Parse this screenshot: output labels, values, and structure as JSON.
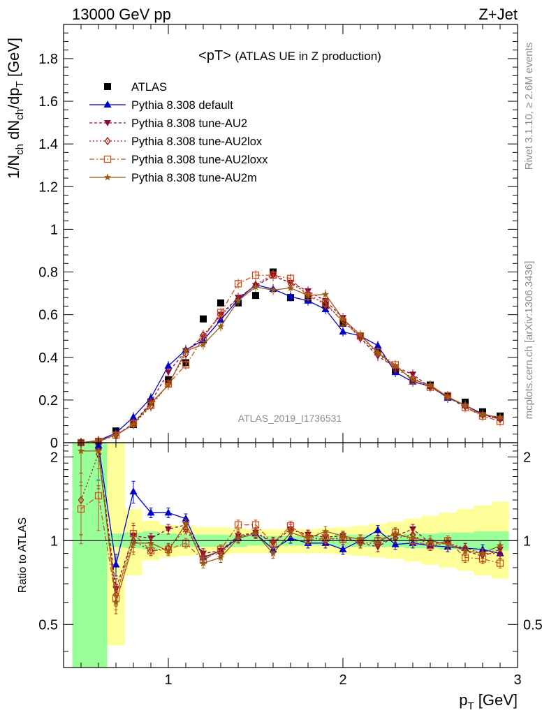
{
  "header": {
    "left": "13000 GeV pp",
    "right": "Z+Jet"
  },
  "side_labels": {
    "rivet": "Rivet 3.1.10, ≥ 2.6M events",
    "mcplots": "mcplots.cern.ch [arXiv:1306.3436]"
  },
  "analysis_id": "ATLAS_2019_I1736531",
  "chart_data": [
    {
      "type": "line",
      "panel": "main",
      "title_main": "<pT>",
      "title_sub": "(ATLAS UE in Z production)",
      "ylabel": "1/N_ch dN_ch/dp_T [GeV]",
      "xlabel": "p_T [GeV]",
      "xlim": [
        0.4,
        3.0
      ],
      "ylim": [
        0,
        1.96
      ],
      "x_ticks": [
        "1",
        "2",
        "3"
      ],
      "y_ticks": [
        "0",
        "0.2",
        "0.4",
        "0.6",
        "0.8",
        "1",
        "1.2",
        "1.4",
        "1.6",
        "1.8"
      ],
      "legend_position": "top-left",
      "x": [
        0.5,
        0.6,
        0.7,
        0.8,
        0.9,
        1.0,
        1.1,
        1.2,
        1.3,
        1.4,
        1.5,
        1.6,
        1.7,
        1.8,
        1.9,
        2.0,
        2.1,
        2.2,
        2.3,
        2.4,
        2.5,
        2.6,
        2.7,
        2.8,
        2.9
      ],
      "series": [
        {
          "name": "ATLAS",
          "color": "#000000",
          "marker": "square",
          "values": [
            0.0,
            0.005,
            0.055,
            0.085,
            0.19,
            0.295,
            0.375,
            0.58,
            0.655,
            0.655,
            0.69,
            0.8,
            0.68,
            0.675,
            0.645,
            0.56,
            0.5,
            0.425,
            0.34,
            0.29,
            0.27,
            0.22,
            0.19,
            0.145,
            0.125
          ]
        },
        {
          "name": "Pythia 8.308 default",
          "color": "#0000cc",
          "marker": "triangle-up",
          "values": [
            0.0,
            0.01,
            0.045,
            0.12,
            0.21,
            0.36,
            0.435,
            0.48,
            0.575,
            0.67,
            0.74,
            0.72,
            0.685,
            0.665,
            0.625,
            0.52,
            0.5,
            0.455,
            0.33,
            0.285,
            0.265,
            0.21,
            0.175,
            0.135,
            0.115
          ]
        },
        {
          "name": "Pythia 8.308 tune-AU2",
          "color": "#8b0a3a",
          "marker": "triangle-down",
          "values": [
            0.0,
            0.01,
            0.035,
            0.09,
            0.19,
            0.33,
            0.43,
            0.495,
            0.6,
            0.68,
            0.735,
            0.78,
            0.75,
            0.71,
            0.665,
            0.585,
            0.49,
            0.405,
            0.355,
            0.32,
            0.26,
            0.215,
            0.165,
            0.13,
            0.11
          ]
        },
        {
          "name": "Pythia 8.308 tune-AU2lox",
          "color": "#a01818",
          "marker": "diamond-open",
          "values": [
            0.0,
            0.01,
            0.035,
            0.085,
            0.17,
            0.275,
            0.415,
            0.505,
            0.595,
            0.675,
            0.74,
            0.79,
            0.745,
            0.7,
            0.645,
            0.575,
            0.49,
            0.42,
            0.345,
            0.305,
            0.26,
            0.215,
            0.175,
            0.13,
            0.11
          ]
        },
        {
          "name": "Pythia 8.308 tune-AU2loxx",
          "color": "#c8501e",
          "marker": "square-open",
          "values": [
            0.0,
            0.005,
            0.035,
            0.09,
            0.175,
            0.275,
            0.365,
            0.49,
            0.61,
            0.745,
            0.785,
            0.785,
            0.77,
            0.685,
            0.655,
            0.565,
            0.5,
            0.425,
            0.365,
            0.29,
            0.26,
            0.22,
            0.165,
            0.125,
            0.1
          ]
        },
        {
          "name": "Pythia 8.308 tune-AU2m",
          "color": "#9a5a12",
          "marker": "star",
          "values": [
            0.0,
            0.01,
            0.035,
            0.085,
            0.185,
            0.27,
            0.43,
            0.46,
            0.545,
            0.665,
            0.73,
            0.715,
            0.725,
            0.69,
            0.695,
            0.58,
            0.505,
            0.42,
            0.36,
            0.295,
            0.27,
            0.215,
            0.175,
            0.13,
            0.12
          ]
        }
      ]
    },
    {
      "type": "line",
      "panel": "ratio",
      "ylabel": "Ratio to ATLAS",
      "xlabel": "p_T [GeV]",
      "xlim": [
        0.4,
        3.0
      ],
      "ylim": [
        0.35,
        2.25
      ],
      "y_ticks": [
        "0.5",
        "1",
        "2"
      ],
      "x": [
        0.5,
        0.6,
        0.7,
        0.8,
        0.9,
        1.0,
        1.1,
        1.2,
        1.3,
        1.4,
        1.5,
        1.6,
        1.7,
        1.8,
        1.9,
        2.0,
        2.1,
        2.2,
        2.3,
        2.4,
        2.5,
        2.6,
        2.7,
        2.8,
        2.9
      ],
      "bands": {
        "inner_color": "#99ff99",
        "outer_color": "#ffff99",
        "edges": [
          0.45,
          0.65,
          0.75,
          0.85,
          0.95,
          1.05,
          1.15,
          1.25,
          1.35,
          1.45,
          1.55,
          1.65,
          1.75,
          1.85,
          1.95,
          2.05,
          2.15,
          2.25,
          2.35,
          2.45,
          2.55,
          2.65,
          2.75,
          2.85,
          2.95
        ],
        "inner_lo": [
          0.35,
          0.95,
          0.94,
          0.93,
          0.95,
          0.95,
          0.95,
          0.95,
          0.95,
          0.96,
          0.96,
          0.96,
          0.96,
          0.96,
          0.95,
          0.95,
          0.95,
          0.95,
          0.94,
          0.94,
          0.93,
          0.93,
          0.92,
          0.92
        ],
        "inner_hi": [
          2.25,
          1.06,
          1.07,
          1.08,
          1.06,
          1.05,
          1.05,
          1.05,
          1.05,
          1.04,
          1.04,
          1.04,
          1.04,
          1.04,
          1.05,
          1.05,
          1.05,
          1.05,
          1.06,
          1.06,
          1.07,
          1.07,
          1.08,
          1.08
        ],
        "outer_lo": [
          0.35,
          0.42,
          0.75,
          0.85,
          0.87,
          0.88,
          0.89,
          0.89,
          0.9,
          0.9,
          0.9,
          0.9,
          0.9,
          0.9,
          0.89,
          0.88,
          0.87,
          0.86,
          0.84,
          0.82,
          0.8,
          0.78,
          0.75,
          0.73
        ],
        "outer_hi": [
          2.25,
          2.25,
          1.3,
          1.18,
          1.14,
          1.13,
          1.12,
          1.12,
          1.11,
          1.1,
          1.1,
          1.1,
          1.1,
          1.11,
          1.12,
          1.13,
          1.15,
          1.17,
          1.2,
          1.23,
          1.26,
          1.3,
          1.34,
          1.38
        ]
      },
      "series": [
        {
          "name": "Pythia 8.308 default",
          "color": "#0000cc",
          "marker": "triangle-up",
          "values": [
            null,
            2.2,
            0.82,
            1.5,
            1.26,
            1.26,
            1.2,
            0.87,
            0.92,
            1.02,
            1.06,
            0.93,
            1.02,
            0.98,
            0.98,
            0.93,
            1.0,
            1.09,
            0.97,
            0.98,
            0.96,
            0.95,
            0.94,
            0.93,
            0.9
          ]
        },
        {
          "name": "Pythia 8.308 tune-AU2",
          "color": "#8b0a3a",
          "marker": "triangle-down",
          "values": [
            null,
            2.1,
            0.67,
            1.04,
            1.02,
            1.1,
            1.14,
            0.9,
            0.92,
            1.04,
            1.07,
            0.98,
            1.1,
            1.05,
            1.03,
            1.04,
            0.98,
            0.95,
            1.04,
            1.1,
            0.98,
            0.98,
            0.92,
            0.88,
            0.93
          ]
        },
        {
          "name": "Pythia 8.308 tune-AU2lox",
          "color": "#a01818",
          "marker": "diamond-open",
          "values": [
            1.4,
            2.05,
            0.64,
            1.0,
            0.92,
            0.94,
            1.1,
            0.88,
            0.9,
            1.03,
            1.07,
            0.99,
            1.1,
            1.04,
            1.0,
            1.03,
            0.98,
            0.98,
            1.02,
            1.05,
            0.96,
            0.98,
            0.94,
            0.9,
            0.9
          ]
        },
        {
          "name": "Pythia 8.308 tune-AU2loxx",
          "color": "#c8501e",
          "marker": "square-open",
          "values": [
            1.3,
            1.45,
            0.62,
            1.06,
            0.92,
            0.93,
            0.98,
            0.85,
            0.93,
            1.14,
            1.14,
            0.98,
            1.13,
            1.01,
            1.02,
            1.01,
            1.0,
            1.0,
            1.07,
            1.0,
            0.96,
            1.0,
            0.87,
            0.86,
            0.83
          ]
        },
        {
          "name": "Pythia 8.308 tune-AU2m",
          "color": "#9a5a12",
          "marker": "star",
          "values": [
            2.1,
            2.1,
            0.6,
            0.98,
            0.98,
            0.92,
            1.15,
            0.83,
            0.87,
            1.02,
            1.06,
            0.9,
            1.07,
            1.02,
            1.08,
            1.04,
            1.01,
            0.99,
            1.06,
            1.02,
            1.0,
            0.97,
            0.92,
            0.9,
            0.96
          ]
        }
      ]
    }
  ]
}
